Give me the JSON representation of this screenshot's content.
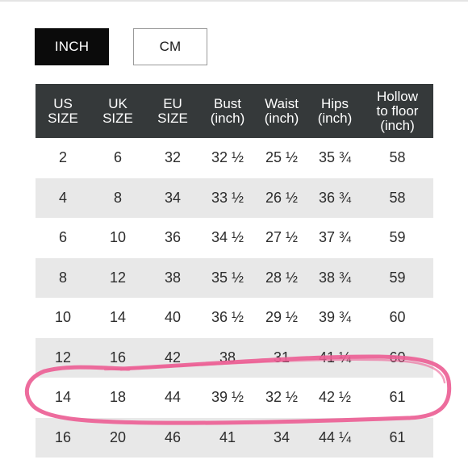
{
  "unit_toggle": {
    "inch_label": "INCH",
    "cm_label": "CM",
    "selected": "INCH"
  },
  "size_chart": {
    "headers": [
      [
        "US",
        "SIZE"
      ],
      [
        "UK",
        "SIZE"
      ],
      [
        "EU",
        "SIZE"
      ],
      [
        "Bust",
        "(inch)"
      ],
      [
        "Waist",
        "(inch)"
      ],
      [
        "Hips",
        "(inch)"
      ],
      [
        "Hollow",
        "to floor",
        "(inch)"
      ]
    ],
    "rows": [
      [
        "2",
        "6",
        "32",
        "32 ½",
        "25 ½",
        "35 ¾",
        "58"
      ],
      [
        "4",
        "8",
        "34",
        "33 ½",
        "26 ½",
        "36 ¾",
        "58"
      ],
      [
        "6",
        "10",
        "36",
        "34 ½",
        "27 ½",
        "37 ¾",
        "59"
      ],
      [
        "8",
        "12",
        "38",
        "35 ½",
        "28 ½",
        "38 ¾",
        "59"
      ],
      [
        "10",
        "14",
        "40",
        "36 ½",
        "29 ½",
        "39 ¾",
        "60"
      ],
      [
        "12",
        "16",
        "42",
        "38",
        "31",
        "41 ¼",
        "60"
      ],
      [
        "14",
        "18",
        "44",
        "39 ½",
        "32 ½",
        "42 ½",
        "61"
      ],
      [
        "16",
        "20",
        "46",
        "41",
        "34",
        "44 ¼",
        "61"
      ]
    ],
    "highlighted_row": "14"
  },
  "colors": {
    "header_bg": "#35393a",
    "stripe_bg": "#e8e8e8",
    "active_button_bg": "#0b0b0b",
    "highlight_marker": "#ec5f95"
  }
}
